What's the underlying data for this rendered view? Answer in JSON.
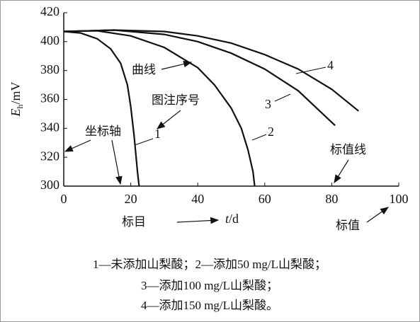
{
  "chart_data": {
    "type": "line",
    "y_label": {
      "main": "E",
      "sub": "h",
      "unit": "/mV"
    },
    "x_label": {
      "var": "t",
      "unit": "/d"
    },
    "xlim": [
      0,
      100
    ],
    "xticks": [
      0,
      20,
      40,
      60,
      80,
      100
    ],
    "ylim": [
      300,
      420
    ],
    "yticks": [
      300,
      320,
      340,
      360,
      380,
      400,
      420
    ],
    "color": "#111111",
    "series": [
      {
        "name": "1",
        "x": [
          0,
          5,
          10,
          14,
          17,
          19,
          20,
          21,
          22,
          22.5
        ],
        "values": [
          407,
          406,
          402,
          395,
          385,
          370,
          355,
          335,
          310,
          300
        ]
      },
      {
        "name": "2",
        "x": [
          0,
          10,
          20,
          30,
          40,
          45,
          50,
          53,
          55,
          56.5,
          57
        ],
        "values": [
          407,
          407.5,
          404,
          396,
          382,
          370,
          354,
          340,
          325,
          310,
          300
        ]
      },
      {
        "name": "3",
        "x": [
          0,
          15,
          30,
          40,
          50,
          60,
          70,
          81
        ],
        "values": [
          407,
          408,
          405,
          400,
          392,
          381,
          366,
          342
        ]
      },
      {
        "name": "4",
        "x": [
          0,
          15,
          30,
          40,
          50,
          60,
          70,
          80,
          88
        ],
        "values": [
          407,
          408,
          407,
          404,
          399,
          391,
          381,
          367,
          352
        ]
      }
    ],
    "annotations": [
      "曲线",
      "图注序号",
      "坐标轴",
      "标值线",
      "标目",
      "标值"
    ],
    "caption": [
      "1—未添加山梨酸；2—添加50 mg/L山梨酸；",
      "3—添加100 mg/L山梨酸；",
      "4—添加150 mg/L山梨酸。"
    ]
  }
}
